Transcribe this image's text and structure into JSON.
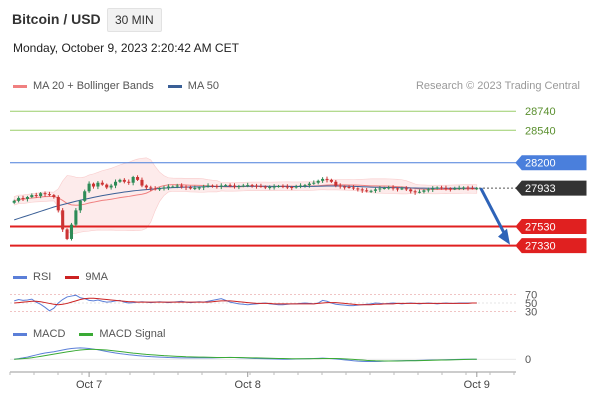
{
  "header": {
    "symbol": "Bitcoin / USD",
    "timeframe": "30 MIN",
    "datetime": "Monday, October 9, 2023 2:20:42 AM CET",
    "credit": "Research © 2023 Trading Central"
  },
  "colors": {
    "bollinger": "#f08080",
    "ma50": "#3a5f96",
    "up_candle": "#2e8b57",
    "down_candle": "#cc3333",
    "resistance_green": "#9acd6a",
    "level_blue": "#4a7fdc",
    "support_red": "#e02020",
    "current_price": "#333333",
    "arrow": "#2e63b8",
    "rsi": "#5b7fd8",
    "rsi_9ma": "#cc2222",
    "macd": "#5b7fd8",
    "macd_signal": "#3aaa35"
  },
  "legend_main": [
    {
      "label": "MA 20 + Bollinger Bands",
      "color": "#f08080"
    },
    {
      "label": "MA 50",
      "color": "#3a5f96"
    }
  ],
  "legend_rsi": [
    {
      "label": "RSI",
      "color": "#5b7fd8"
    },
    {
      "label": "9MA",
      "color": "#cc2222"
    }
  ],
  "legend_macd": [
    {
      "label": "MACD",
      "color": "#5b7fd8"
    },
    {
      "label": "MACD Signal",
      "color": "#3aaa35"
    }
  ],
  "chart_data": [
    {
      "type": "candlestick",
      "ylim": [
        27200,
        28900
      ],
      "x_tick_labels": [
        "Oct 7",
        "Oct 8",
        "Oct 9"
      ],
      "levels": [
        {
          "label": "28740",
          "value": 28740,
          "style": "resistance"
        },
        {
          "label": "28540",
          "value": 28540,
          "style": "resistance"
        },
        {
          "label": "28200",
          "value": 28200,
          "style": "pivot"
        },
        {
          "label": "27933",
          "value": 27933,
          "style": "current"
        },
        {
          "label": "27530",
          "value": 27530,
          "style": "support"
        },
        {
          "label": "27330",
          "value": 27330,
          "style": "support"
        }
      ],
      "closes": [
        27800,
        27830,
        27820,
        27840,
        27860,
        27850,
        27880,
        27870,
        27860,
        27840,
        27700,
        27500,
        27400,
        27550,
        27700,
        27800,
        27900,
        27980,
        27950,
        27990,
        27970,
        27940,
        27960,
        28000,
        28020,
        28000,
        27990,
        28050,
        28020,
        27960,
        27940,
        27930,
        27920,
        27930,
        27940,
        27950,
        27950,
        27960,
        27950,
        27940,
        27930,
        27935,
        27940,
        27950,
        27960,
        27955,
        27950,
        27960,
        27965,
        27960,
        27950,
        27955,
        27960,
        27965,
        27960,
        27955,
        27950,
        27940,
        27945,
        27950,
        27955,
        27950,
        27945,
        27940,
        27950,
        27960,
        27965,
        27980,
        27990,
        28010,
        28030,
        28020,
        28000,
        27960,
        27950,
        27945,
        27940,
        27930,
        27920,
        27910,
        27900,
        27905,
        27920,
        27930,
        27935,
        27940,
        27930,
        27925,
        27930,
        27920,
        27900,
        27890,
        27895,
        27910,
        27920,
        27930,
        27940,
        27935,
        27930,
        27925,
        27930,
        27935,
        27940,
        27935,
        27930,
        27933
      ],
      "ma50": [
        27600,
        27615,
        27630,
        27645,
        27660,
        27675,
        27690,
        27705,
        27720,
        27735,
        27748,
        27760,
        27772,
        27784,
        27796,
        27806,
        27816,
        27826,
        27836,
        27845,
        27854,
        27862,
        27870,
        27878,
        27885,
        27892,
        27898,
        27904,
        27909,
        27914,
        27918,
        27922,
        27926,
        27930,
        27933,
        27936,
        27938,
        27940,
        27942,
        27944,
        27945,
        27946,
        27947,
        27948,
        27949,
        27950,
        27950,
        27951,
        27951,
        27952,
        27952,
        27952,
        27953,
        27953,
        27953,
        27953,
        27953,
        27953,
        27952,
        27952,
        27952,
        27951,
        27951,
        27950,
        27950,
        27950,
        27950,
        27951,
        27952,
        27953,
        27954,
        27955,
        27956,
        27956,
        27955,
        27954,
        27953,
        27952,
        27950,
        27948,
        27946,
        27944,
        27943,
        27942,
        27941,
        27940,
        27939,
        27938,
        27937,
        27936,
        27935,
        27934,
        27933,
        27933,
        27932,
        27932,
        27932,
        27932,
        27932,
        27932,
        27932,
        27932,
        27932,
        27933,
        27933,
        27933
      ]
    },
    {
      "type": "line",
      "title": "RSI",
      "y_ticks": [
        "70",
        "50",
        "30"
      ],
      "ylim": [
        20,
        80
      ],
      "series": [
        {
          "name": "RSI",
          "values": [
            55,
            58,
            56,
            57,
            59,
            52,
            47,
            40,
            32,
            38,
            50,
            58,
            64,
            66,
            68,
            62,
            60,
            56,
            55,
            57,
            54,
            52,
            53,
            55,
            56,
            52,
            50,
            51,
            52,
            53,
            52,
            51,
            52,
            53,
            52,
            51,
            52,
            53,
            54,
            52,
            51,
            52,
            53,
            52,
            54,
            56,
            58,
            60,
            56,
            52,
            50,
            48,
            47,
            46,
            47,
            48,
            49,
            50,
            48,
            47,
            46,
            46,
            47,
            48,
            48,
            49,
            50,
            49,
            48,
            50,
            56,
            54,
            50,
            47,
            46,
            45,
            44,
            44,
            45,
            46,
            47,
            48,
            50,
            49,
            48,
            49,
            50,
            49,
            48,
            49,
            50,
            49,
            48,
            49,
            50,
            49,
            48,
            49,
            50,
            49,
            49,
            50,
            50,
            50,
            50,
            50
          ]
        },
        {
          "name": "9MA",
          "values": [
            50,
            51,
            52,
            53,
            54,
            54,
            53,
            51,
            49,
            47,
            46,
            47,
            49,
            52,
            55,
            58,
            60,
            61,
            61,
            60,
            59,
            58,
            57,
            56,
            55,
            54,
            53,
            53,
            52,
            52,
            52,
            52,
            52,
            52,
            52,
            52,
            52,
            52,
            52,
            52,
            52,
            52,
            52,
            52,
            52,
            53,
            54,
            55,
            55,
            55,
            54,
            53,
            52,
            51,
            50,
            49,
            49,
            49,
            49,
            48,
            48,
            48,
            48,
            48,
            48,
            48,
            48,
            48,
            48,
            49,
            50,
            51,
            51,
            51,
            50,
            49,
            48,
            47,
            46,
            46,
            46,
            46,
            47,
            47,
            48,
            48,
            48,
            49,
            49,
            49,
            49,
            49,
            49,
            49,
            49,
            49,
            49,
            49,
            49,
            49,
            49,
            49,
            49,
            49,
            50,
            50
          ]
        }
      ]
    },
    {
      "type": "line",
      "title": "MACD",
      "y_ticks": [
        "0"
      ],
      "ylim": [
        -120,
        180
      ],
      "series": [
        {
          "name": "MACD",
          "values": [
            0,
            5,
            12,
            20,
            30,
            40,
            50,
            58,
            64,
            70,
            78,
            86,
            94,
            100,
            104,
            106,
            104,
            100,
            95,
            88,
            80,
            72,
            65,
            58,
            52,
            47,
            42,
            38,
            34,
            30,
            27,
            24,
            22,
            20,
            18,
            16,
            15,
            14,
            13,
            12,
            12,
            12,
            12,
            12,
            12,
            13,
            14,
            15,
            16,
            17,
            16,
            14,
            12,
            10,
            8,
            6,
            5,
            4,
            3,
            2,
            1,
            0,
            0,
            1,
            2,
            3,
            4,
            5,
            6,
            8,
            10,
            8,
            5,
            2,
            -2,
            -6,
            -10,
            -14,
            -18,
            -20,
            -22,
            -22,
            -21,
            -20,
            -18,
            -17,
            -16,
            -15,
            -14,
            -13,
            -12,
            -12,
            -11,
            -10,
            -9,
            -8,
            -7,
            -6,
            -5,
            -4,
            -3,
            -2,
            -1,
            0,
            0,
            0
          ]
        },
        {
          "name": "MACD Signal",
          "values": [
            0,
            2,
            5,
            9,
            14,
            20,
            27,
            34,
            41,
            48,
            55,
            62,
            69,
            75,
            81,
            86,
            90,
            92,
            92,
            91,
            89,
            86,
            82,
            77,
            72,
            67,
            62,
            57,
            53,
            49,
            45,
            42,
            39,
            36,
            33,
            31,
            29,
            27,
            25,
            23,
            22,
            21,
            20,
            19,
            18,
            17,
            16,
            16,
            16,
            16,
            16,
            16,
            15,
            14,
            13,
            12,
            11,
            10,
            9,
            8,
            7,
            6,
            5,
            4,
            4,
            4,
            4,
            4,
            5,
            5,
            6,
            6,
            6,
            6,
            5,
            3,
            1,
            -2,
            -5,
            -8,
            -11,
            -13,
            -15,
            -16,
            -17,
            -17,
            -17,
            -17,
            -16,
            -15,
            -15,
            -14,
            -13,
            -12,
            -11,
            -10,
            -9,
            -8,
            -7,
            -6,
            -5,
            -4,
            -3,
            -2,
            -1,
            0
          ]
        }
      ]
    }
  ]
}
